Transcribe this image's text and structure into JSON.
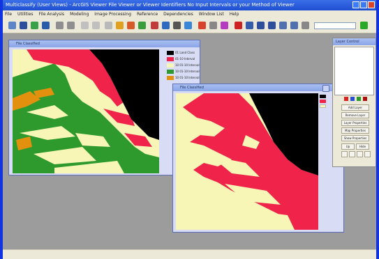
{
  "app": {
    "title": "Multiclassify (User Views) - ArcGIS Viewer File Viewer or Viewer Identifiers No Input Intervals or your Method of Viewer"
  },
  "menu": [
    "File",
    "Utilities",
    "File Analysis",
    "Modeling",
    "Image Processing",
    "Reference",
    "Dependencies",
    "Window List",
    "Help"
  ],
  "colors": {
    "black": "#000000",
    "red": "#f0234a",
    "cream": "#f7f6b6",
    "green": "#2e9a2e",
    "orange": "#e3900e"
  },
  "left_window": {
    "title": "File Classified",
    "legend": [
      "01 Land Class",
      "01-10 Interval",
      "10 01-10 Interval",
      "10 01-10 Interval",
      "10 01-10 Interval"
    ]
  },
  "right_window": {
    "title": "File Classified"
  },
  "right_panel": {
    "title": "Layer Control",
    "buttons": [
      "Add Layer",
      "Remove Layer",
      "Layer Properties",
      "Map Properties",
      "Show Properties",
      "Up",
      "Hide"
    ]
  }
}
